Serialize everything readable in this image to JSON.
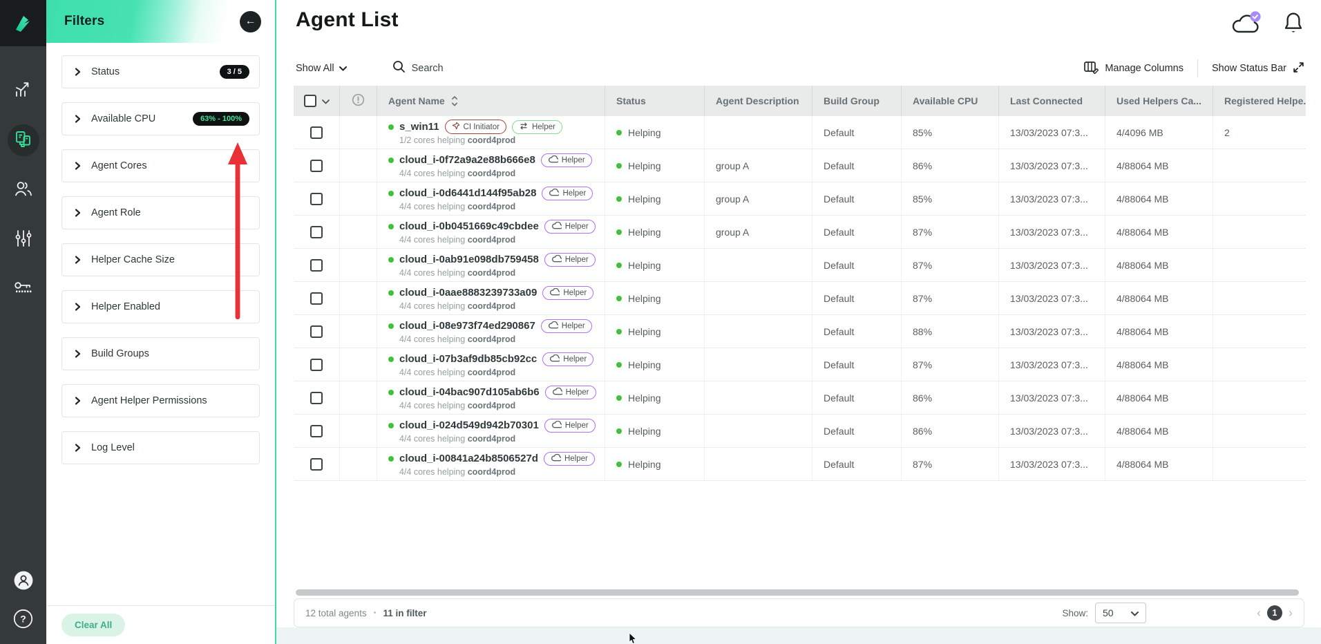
{
  "colors": {
    "accent_teal": "#3fd9a4",
    "sidebar_bg": "#343939",
    "status_green": "#3ec43c",
    "badge_ci_border": "#9c4536",
    "badge_helper_green_border": "#86d98f",
    "badge_helper_purple_border": "#ae6ff0",
    "cpu_filter_badge_text": "#45e29a",
    "annotation_arrow_red": "#ea2f36",
    "notification_badge_purple": "#a78bfa"
  },
  "sidebar": {
    "logo": "incredibuild-logo",
    "icons": [
      {
        "name": "analytics-icon",
        "active": false
      },
      {
        "name": "agents-icon",
        "active": true
      },
      {
        "name": "users-icon",
        "active": false
      },
      {
        "name": "settings-sliders-icon",
        "active": false
      },
      {
        "name": "license-key-icon",
        "active": false
      }
    ],
    "bottom_icons": [
      {
        "name": "profile-avatar-icon"
      },
      {
        "name": "help-icon"
      }
    ]
  },
  "filters": {
    "title": "Filters",
    "back_icon": "back-arrow-icon",
    "items": [
      {
        "label": "Status",
        "badge": "3 / 5",
        "badge_style": "white"
      },
      {
        "label": "Available CPU",
        "badge": "63% - 100%",
        "badge_style": "green"
      },
      {
        "label": "Agent Cores",
        "badge": null
      },
      {
        "label": "Agent Role",
        "badge": null
      },
      {
        "label": "Helper Cache Size",
        "badge": null
      },
      {
        "label": "Helper Enabled",
        "badge": null
      },
      {
        "label": "Build Groups",
        "badge": null
      },
      {
        "label": "Agent Helper Permissions",
        "badge": null
      },
      {
        "label": "Log Level",
        "badge": null
      }
    ],
    "clear_all_label": "Clear All"
  },
  "header": {
    "title": "Agent List",
    "cloud_status_icon": "cloud-check-icon",
    "notifications_icon": "bell-icon"
  },
  "toolbar": {
    "filter_dropdown": "Show All",
    "search_placeholder": "Search",
    "manage_columns": "Manage Columns",
    "show_status_bar": "Show Status Bar"
  },
  "table": {
    "columns": [
      "",
      "",
      "Agent Name",
      "Status",
      "Agent Description",
      "Build Group",
      "Available CPU",
      "Last Connected",
      "Used Helpers Ca...",
      "Registered Helpe.."
    ],
    "rows": [
      {
        "name": "s_win11",
        "badges": [
          {
            "label": "CI Initiator",
            "type": "ci"
          },
          {
            "label": "Helper",
            "type": "helper-swap"
          }
        ],
        "cores": "1/2 cores helping",
        "coordinator": "coord4prod",
        "status": "Helping",
        "description": "",
        "build_group": "Default",
        "available_cpu": "85%",
        "last_connected": "13/03/2023 07:3...",
        "used_helpers": "4/4096 MB",
        "registered_helpers": "2"
      },
      {
        "name": "cloud_i-0f72a9a2e88b666e8",
        "badges": [
          {
            "label": "Helper",
            "type": "helper-cloud"
          }
        ],
        "cores": "4/4 cores helping",
        "coordinator": "coord4prod",
        "status": "Helping",
        "description": "group A",
        "build_group": "Default",
        "available_cpu": "86%",
        "last_connected": "13/03/2023 07:3...",
        "used_helpers": "4/88064 MB",
        "registered_helpers": ""
      },
      {
        "name": "cloud_i-0d6441d144f95ab28",
        "badges": [
          {
            "label": "Helper",
            "type": "helper-cloud"
          }
        ],
        "cores": "4/4 cores helping",
        "coordinator": "coord4prod",
        "status": "Helping",
        "description": "group A",
        "build_group": "Default",
        "available_cpu": "85%",
        "last_connected": "13/03/2023 07:3...",
        "used_helpers": "4/88064 MB",
        "registered_helpers": ""
      },
      {
        "name": "cloud_i-0b0451669c49cbdee",
        "badges": [
          {
            "label": "Helper",
            "type": "helper-cloud"
          }
        ],
        "cores": "4/4 cores helping",
        "coordinator": "coord4prod",
        "status": "Helping",
        "description": "group A",
        "build_group": "Default",
        "available_cpu": "87%",
        "last_connected": "13/03/2023 07:3...",
        "used_helpers": "4/88064 MB",
        "registered_helpers": ""
      },
      {
        "name": "cloud_i-0ab91e098db759458",
        "badges": [
          {
            "label": "Helper",
            "type": "helper-cloud"
          }
        ],
        "cores": "4/4 cores helping",
        "coordinator": "coord4prod",
        "status": "Helping",
        "description": "",
        "build_group": "Default",
        "available_cpu": "87%",
        "last_connected": "13/03/2023 07:3...",
        "used_helpers": "4/88064 MB",
        "registered_helpers": ""
      },
      {
        "name": "cloud_i-0aae8883239733a09",
        "badges": [
          {
            "label": "Helper",
            "type": "helper-cloud"
          }
        ],
        "cores": "4/4 cores helping",
        "coordinator": "coord4prod",
        "status": "Helping",
        "description": "",
        "build_group": "Default",
        "available_cpu": "87%",
        "last_connected": "13/03/2023 07:3...",
        "used_helpers": "4/88064 MB",
        "registered_helpers": ""
      },
      {
        "name": "cloud_i-08e973f74ed290867",
        "badges": [
          {
            "label": "Helper",
            "type": "helper-cloud"
          }
        ],
        "cores": "4/4 cores helping",
        "coordinator": "coord4prod",
        "status": "Helping",
        "description": "",
        "build_group": "Default",
        "available_cpu": "88%",
        "last_connected": "13/03/2023 07:3...",
        "used_helpers": "4/88064 MB",
        "registered_helpers": ""
      },
      {
        "name": "cloud_i-07b3af9db85cb92cc",
        "badges": [
          {
            "label": "Helper",
            "type": "helper-cloud"
          }
        ],
        "cores": "4/4 cores helping",
        "coordinator": "coord4prod",
        "status": "Helping",
        "description": "",
        "build_group": "Default",
        "available_cpu": "87%",
        "last_connected": "13/03/2023 07:3...",
        "used_helpers": "4/88064 MB",
        "registered_helpers": ""
      },
      {
        "name": "cloud_i-04bac907d105ab6b6",
        "badges": [
          {
            "label": "Helper",
            "type": "helper-cloud"
          }
        ],
        "cores": "4/4 cores helping",
        "coordinator": "coord4prod",
        "status": "Helping",
        "description": "",
        "build_group": "Default",
        "available_cpu": "86%",
        "last_connected": "13/03/2023 07:3...",
        "used_helpers": "4/88064 MB",
        "registered_helpers": ""
      },
      {
        "name": "cloud_i-024d549d942b70301",
        "badges": [
          {
            "label": "Helper",
            "type": "helper-cloud"
          }
        ],
        "cores": "4/4 cores helping",
        "coordinator": "coord4prod",
        "status": "Helping",
        "description": "",
        "build_group": "Default",
        "available_cpu": "86%",
        "last_connected": "13/03/2023 07:3...",
        "used_helpers": "4/88064 MB",
        "registered_helpers": ""
      },
      {
        "name": "cloud_i-00841a24b8506527d",
        "badges": [
          {
            "label": "Helper",
            "type": "helper-cloud"
          }
        ],
        "cores": "4/4 cores helping",
        "coordinator": "coord4prod",
        "status": "Helping",
        "description": "",
        "build_group": "Default",
        "available_cpu": "87%",
        "last_connected": "13/03/2023 07:3...",
        "used_helpers": "4/88064 MB",
        "registered_helpers": ""
      }
    ]
  },
  "footer": {
    "total": "12 total agents",
    "separator": "•",
    "in_filter": "11 in filter",
    "show_label": "Show:",
    "page_size": "50",
    "page": "1",
    "prev": "‹",
    "next": "›"
  }
}
